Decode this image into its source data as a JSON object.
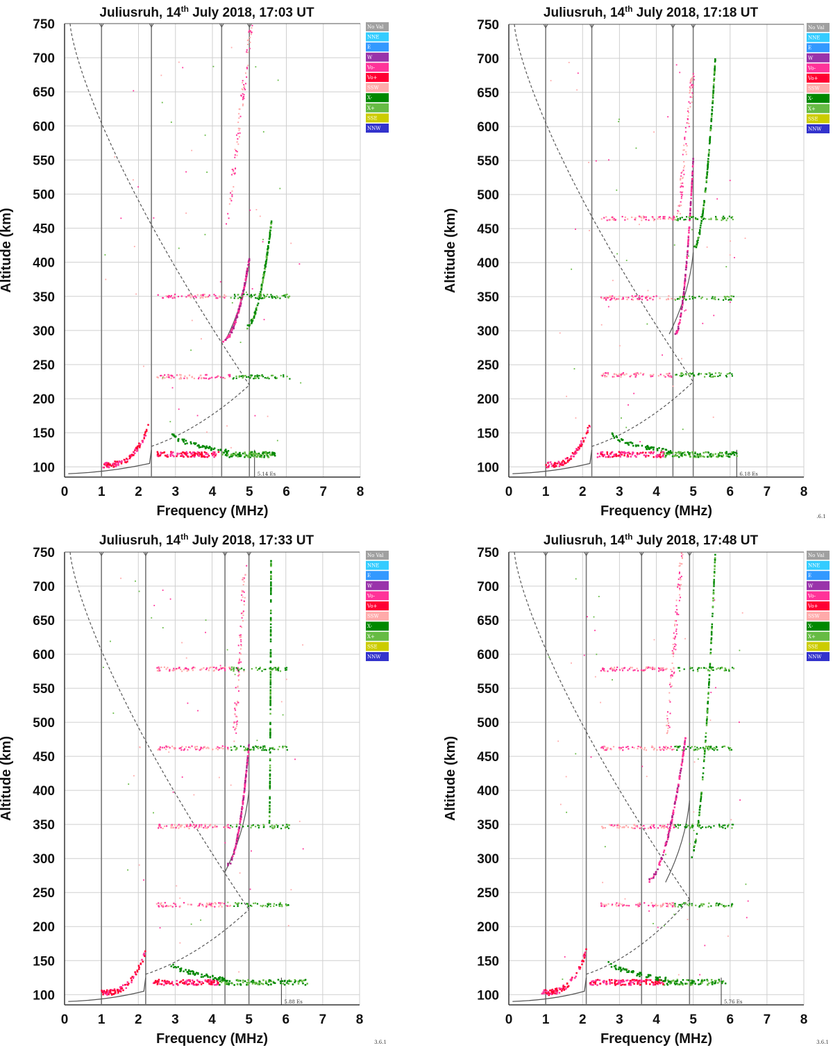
{
  "figure": {
    "version_marks": [
      ".6.1",
      "3.6.1",
      "3.6.1"
    ]
  },
  "legend": [
    {
      "label": "No Val",
      "color": "#a0a0a0"
    },
    {
      "label": "NNE",
      "color": "#33ccff"
    },
    {
      "label": "E",
      "color": "#3399ff"
    },
    {
      "label": "W",
      "color": "#9933aa"
    },
    {
      "label": "Vo-",
      "color": "#ff3399"
    },
    {
      "label": "Vo+",
      "color": "#ff0033"
    },
    {
      "label": "SSW",
      "color": "#ffaaaa"
    },
    {
      "label": "X-",
      "color": "#008800"
    },
    {
      "label": "X+",
      "color": "#66bb44"
    },
    {
      "label": "SSE",
      "color": "#cccc00"
    },
    {
      "label": "NNW",
      "color": "#3333cc"
    }
  ],
  "chart_data": [
    {
      "type": "scatter",
      "title": "Juliusruh, 14th July 2018, 17:03 UT",
      "title_parts": {
        "prefix": "Juliusruh, 14",
        "sup": "th",
        "suffix": " July 2018, 17:03 UT"
      },
      "xlabel": "Frequency (MHz)",
      "ylabel": "Altitude (km)",
      "xlim": [
        0,
        8
      ],
      "ylim": [
        85,
        750
      ],
      "xticks": [
        0,
        1,
        2,
        3,
        4,
        5,
        6,
        7,
        8
      ],
      "yticks": [
        100,
        150,
        200,
        250,
        300,
        350,
        400,
        450,
        500,
        550,
        600,
        650,
        700,
        750
      ],
      "grid": true,
      "legend_position": "right",
      "vertical_markers": [
        1.0,
        2.35,
        4.25,
        5.0
      ],
      "es_marker": {
        "freq": 5.14,
        "label": "5.14 Es"
      },
      "profile": {
        "foE": 2.35,
        "foF2": 5.0,
        "hmF2": 220,
        "hm_peak_line": 285
      },
      "traces": {
        "es_band": {
          "h": 118,
          "f_start": 2.5,
          "f_end": 5.7
        },
        "e_layer": {
          "f_start": 1.05,
          "f_end": 2.3
        },
        "f_layer_o": {
          "start": [
            4.25,
            283
          ],
          "end": [
            5.0,
            405
          ]
        },
        "f_layer_x": {
          "start": [
            4.9,
            305
          ],
          "end": [
            5.6,
            460
          ]
        },
        "multiples_h": [
          232,
          350
        ],
        "upper_traces": [
          [
            4.4,
            455,
            5.05,
            750
          ]
        ]
      }
    },
    {
      "type": "scatter",
      "title": "Juliusruh, 14th July 2018, 17:18 UT",
      "title_parts": {
        "prefix": "Juliusruh, 14",
        "sup": "th",
        "suffix": " July 2018, 17:18 UT"
      },
      "xlabel": "Frequency (MHz)",
      "ylabel": "Altitude (km)",
      "xlim": [
        0,
        8
      ],
      "ylim": [
        85,
        750
      ],
      "xticks": [
        0,
        1,
        2,
        3,
        4,
        5,
        6,
        7,
        8
      ],
      "yticks": [
        100,
        150,
        200,
        250,
        300,
        350,
        400,
        450,
        500,
        550,
        600,
        650,
        700,
        750
      ],
      "grid": true,
      "legend_position": "right",
      "vertical_markers": [
        1.0,
        2.25,
        4.45,
        5.0
      ],
      "es_marker": {
        "freq": 6.18,
        "label": "6.18 Es"
      },
      "profile": {
        "foE": 2.25,
        "foF2": 5.0,
        "hmF2": 225,
        "hm_peak_line": 295
      },
      "traces": {
        "es_band": {
          "h": 118,
          "f_start": 2.4,
          "f_end": 6.2
        },
        "e_layer": {
          "f_start": 1.0,
          "f_end": 2.2
        },
        "f_layer_o": {
          "start": [
            4.5,
            295
          ],
          "end": [
            5.0,
            550
          ]
        },
        "f_layer_x": {
          "start": [
            5.0,
            420
          ],
          "end": [
            5.6,
            700
          ]
        },
        "multiples_h": [
          235,
          348,
          465
        ],
        "upper_traces": [
          [
            4.6,
            470,
            5.0,
            680
          ]
        ]
      }
    },
    {
      "type": "scatter",
      "title": "Juliusruh, 14th July 2018, 17:33 UT",
      "title_parts": {
        "prefix": "Juliusruh, 14",
        "sup": "th",
        "suffix": " July 2018, 17:33 UT"
      },
      "xlabel": "Frequency (MHz)",
      "ylabel": "Altitude (km)",
      "xlim": [
        0,
        8
      ],
      "ylim": [
        85,
        750
      ],
      "xticks": [
        0,
        1,
        2,
        3,
        4,
        5,
        6,
        7,
        8
      ],
      "yticks": [
        100,
        150,
        200,
        250,
        300,
        350,
        400,
        450,
        500,
        550,
        600,
        650,
        700,
        750
      ],
      "grid": true,
      "legend_position": "right",
      "vertical_markers": [
        1.0,
        2.2,
        4.35,
        5.0
      ],
      "es_marker": {
        "freq": 5.88,
        "label": "5.88 Es"
      },
      "profile": {
        "foE": 2.2,
        "foF2": 5.0,
        "hmF2": 225,
        "hm_peak_line": 280
      },
      "traces": {
        "es_band": {
          "h": 118,
          "f_start": 2.4,
          "f_end": 6.6
        },
        "e_layer": {
          "f_start": 1.0,
          "f_end": 2.2
        },
        "f_layer_o": {
          "start": [
            4.4,
            290
          ],
          "end": [
            5.0,
            465
          ]
        },
        "f_layer_x": {
          "start": [
            5.55,
            350
          ],
          "end": [
            5.6,
            740
          ]
        },
        "multiples_h": [
          232,
          347,
          462,
          578
        ],
        "upper_traces": [
          [
            4.6,
            470,
            4.9,
            730
          ]
        ]
      }
    },
    {
      "type": "scatter",
      "title": "Juliusruh, 14th July 2018, 17:48 UT",
      "title_parts": {
        "prefix": "Juliusruh, 14",
        "sup": "th",
        "suffix": " July 2018, 17:48 UT"
      },
      "xlabel": "Frequency (MHz)",
      "ylabel": "Altitude (km)",
      "xlim": [
        0,
        8
      ],
      "ylim": [
        85,
        750
      ],
      "xticks": [
        0,
        1,
        2,
        3,
        4,
        5,
        6,
        7,
        8
      ],
      "yticks": [
        100,
        150,
        200,
        250,
        300,
        350,
        400,
        450,
        500,
        550,
        600,
        650,
        700,
        750
      ],
      "grid": true,
      "legend_position": "right",
      "vertical_markers": [
        1.0,
        2.1,
        3.6,
        4.9
      ],
      "es_marker": {
        "freq": 5.76,
        "label": "5.76 Es"
      },
      "profile": {
        "foE": 2.1,
        "foF2": 4.9,
        "hmF2": 240,
        "hm_peak_line": 265
      },
      "traces": {
        "es_band": {
          "h": 118,
          "f_start": 2.2,
          "f_end": 5.9
        },
        "e_layer": {
          "f_start": 0.9,
          "f_end": 2.1
        },
        "f_layer_o": {
          "start": [
            3.7,
            265
          ],
          "end": [
            4.8,
            480
          ]
        },
        "f_layer_x": {
          "start": [
            4.9,
            300
          ],
          "end": [
            5.6,
            750
          ]
        },
        "multiples_h": [
          232,
          347,
          462,
          578
        ],
        "upper_traces": [
          [
            4.3,
            480,
            4.7,
            750
          ]
        ]
      }
    }
  ]
}
